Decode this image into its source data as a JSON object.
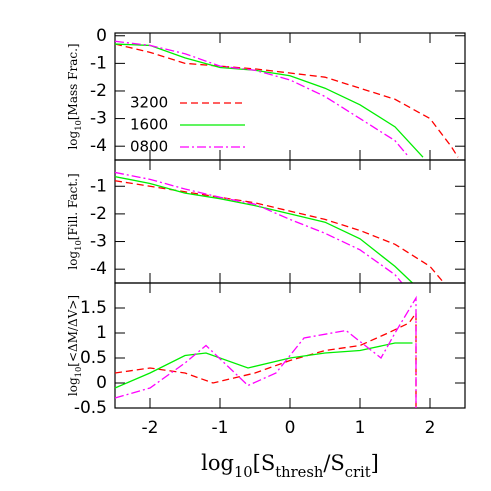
{
  "chart_data": [
    {
      "type": "line",
      "ylabel": [
        "log",
        "10",
        "[Mass Frac.]"
      ],
      "xlim": [
        -2.5,
        2.5
      ],
      "xticks": [
        -2,
        -1,
        0,
        1,
        2
      ],
      "ylim": [
        -4.5,
        0.1
      ],
      "yticks": [
        0,
        -1,
        -2,
        -3,
        -4
      ],
      "legend": "lower left",
      "series": [
        {
          "name": "3200",
          "color": "#ff0000",
          "x": [
            -2.5,
            -2,
            -1.5,
            -1,
            -0.5,
            0,
            0.5,
            1,
            1.5,
            2,
            2.3,
            2.4
          ],
          "values": [
            -0.3,
            -0.6,
            -1.0,
            -1.1,
            -1.2,
            -1.35,
            -1.5,
            -1.9,
            -2.3,
            -3.0,
            -4.0,
            -4.4
          ]
        },
        {
          "name": "1600",
          "color": "#00ee00",
          "x": [
            -2.5,
            -2,
            -1.5,
            -1,
            -0.5,
            0,
            0.5,
            1,
            1.5,
            1.9
          ],
          "values": [
            -0.3,
            -0.35,
            -0.8,
            -1.15,
            -1.25,
            -1.45,
            -1.9,
            -2.5,
            -3.3,
            -4.4
          ]
        },
        {
          "name": "0800",
          "color": "#ff00ff",
          "x": [
            -2.5,
            -2,
            -1.5,
            -1,
            -0.5,
            0,
            0.5,
            1,
            1.5,
            1.7
          ],
          "values": [
            -0.2,
            -0.35,
            -0.65,
            -1.1,
            -1.25,
            -1.6,
            -2.2,
            -3.0,
            -3.8,
            -4.4
          ]
        }
      ]
    },
    {
      "type": "line",
      "ylabel": [
        "log",
        "10",
        "[Fill. Fact.]"
      ],
      "xlim": [
        -2.5,
        2.5
      ],
      "xticks": [
        -2,
        -1,
        0,
        1,
        2
      ],
      "ylim": [
        -4.5,
        -0.05
      ],
      "yticks": [
        -1,
        -2,
        -3,
        -4
      ],
      "series": [
        {
          "name": "3200",
          "color": "#ff0000",
          "x": [
            -2.5,
            -2,
            -1.5,
            -1,
            -0.5,
            0,
            0.5,
            1,
            1.5,
            2,
            2.2
          ],
          "values": [
            -0.8,
            -1.0,
            -1.2,
            -1.4,
            -1.6,
            -1.9,
            -2.2,
            -2.6,
            -3.1,
            -3.9,
            -4.5
          ]
        },
        {
          "name": "1600",
          "color": "#00ee00",
          "x": [
            -2.5,
            -2,
            -1.5,
            -1,
            -0.5,
            0,
            0.5,
            1,
            1.5,
            1.75
          ],
          "values": [
            -0.65,
            -0.9,
            -1.25,
            -1.45,
            -1.7,
            -2.0,
            -2.3,
            -2.9,
            -3.9,
            -4.5
          ]
        },
        {
          "name": "0800",
          "color": "#ff00ff",
          "x": [
            -2.5,
            -2,
            -1.5,
            -1,
            -0.5,
            0,
            0.5,
            1,
            1.5,
            1.6
          ],
          "values": [
            -0.5,
            -0.75,
            -1.1,
            -1.4,
            -1.65,
            -2.2,
            -2.7,
            -3.3,
            -4.2,
            -4.5
          ]
        }
      ]
    },
    {
      "type": "line",
      "ylabel": [
        "log",
        "10",
        "[<ΔM/ΔV>]"
      ],
      "xlabel": [
        "log",
        "10",
        "[S",
        "thresh",
        "/S",
        "crit",
        "]"
      ],
      "xlim": [
        -2.5,
        2.5
      ],
      "xticks": [
        -2,
        -1,
        0,
        1,
        2
      ],
      "ylim": [
        -0.5,
        2
      ],
      "yticks": [
        -0.5,
        0,
        0.5,
        1,
        1.5
      ],
      "series": [
        {
          "name": "3200",
          "color": "#ff0000",
          "x": [
            -2.5,
            -2,
            -1.5,
            -1.1,
            -0.5,
            0,
            0.5,
            1,
            1.4,
            1.7,
            1.8,
            1.8
          ],
          "values": [
            0.2,
            0.3,
            0.2,
            0.0,
            0.2,
            0.45,
            0.65,
            0.75,
            1.0,
            1.2,
            1.4,
            -0.5
          ]
        },
        {
          "name": "1600",
          "color": "#00ee00",
          "x": [
            -2.5,
            -2,
            -1.5,
            -1.2,
            -0.6,
            0,
            0.5,
            1,
            1.5,
            1.75
          ],
          "values": [
            -0.1,
            0.2,
            0.55,
            0.6,
            0.3,
            0.5,
            0.6,
            0.65,
            0.8,
            0.8
          ]
        },
        {
          "name": "0800",
          "color": "#ff00ff",
          "x": [
            -2.5,
            -2,
            -1.5,
            -1.2,
            -0.6,
            -0.2,
            0.2,
            0.8,
            1.3,
            1.5,
            1.8,
            1.8
          ],
          "values": [
            -0.3,
            -0.1,
            0.4,
            0.75,
            -0.05,
            0.2,
            0.9,
            1.05,
            0.5,
            1.0,
            1.7,
            -0.5
          ]
        }
      ]
    }
  ]
}
